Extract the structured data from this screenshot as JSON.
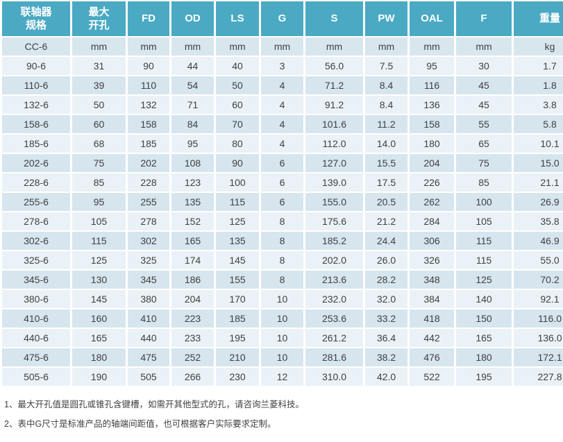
{
  "colors": {
    "header_bg": "#4aa9c3",
    "header_text": "#ffffff",
    "row_light": "#eaf2f7",
    "row_dark": "#d6e5ee",
    "units_row_bg": "#d8e6ee",
    "cell_text": "#3f3f3f"
  },
  "chart_data": {
    "type": "table",
    "title": "",
    "columns": [
      "联轴器\n规格",
      "最大\n开孔",
      "FD",
      "OD",
      "LS",
      "G",
      "S",
      "PW",
      "OAL",
      "F",
      "重量"
    ],
    "units_row": [
      "CC-6",
      "mm",
      "mm",
      "mm",
      "mm",
      "mm",
      "mm",
      "mm",
      "mm",
      "mm",
      "kg"
    ],
    "rows": [
      [
        "90-6",
        "31",
        "90",
        "44",
        "40",
        "3",
        "56.0",
        "7.5",
        "95",
        "30",
        "1.7"
      ],
      [
        "110-6",
        "39",
        "110",
        "54",
        "50",
        "4",
        "71.2",
        "8.4",
        "116",
        "45",
        "1.8"
      ],
      [
        "132-6",
        "50",
        "132",
        "71",
        "60",
        "4",
        "91.2",
        "8.4",
        "136",
        "45",
        "3.8"
      ],
      [
        "158-6",
        "60",
        "158",
        "84",
        "70",
        "4",
        "101.6",
        "11.2",
        "158",
        "55",
        "5.8"
      ],
      [
        "185-6",
        "68",
        "185",
        "95",
        "80",
        "4",
        "112.0",
        "14.0",
        "180",
        "65",
        "10.1"
      ],
      [
        "202-6",
        "75",
        "202",
        "108",
        "90",
        "6",
        "127.0",
        "15.5",
        "204",
        "75",
        "15.0"
      ],
      [
        "228-6",
        "85",
        "228",
        "123",
        "100",
        "6",
        "139.0",
        "17.5",
        "226",
        "85",
        "21.1"
      ],
      [
        "255-6",
        "95",
        "255",
        "135",
        "115",
        "6",
        "155.0",
        "20.5",
        "262",
        "100",
        "26.9"
      ],
      [
        "278-6",
        "105",
        "278",
        "152",
        "125",
        "8",
        "175.6",
        "21.2",
        "284",
        "105",
        "35.8"
      ],
      [
        "302-6",
        "115",
        "302",
        "165",
        "135",
        "8",
        "185.2",
        "24.4",
        "306",
        "115",
        "46.9"
      ],
      [
        "325-6",
        "125",
        "325",
        "174",
        "145",
        "8",
        "202.0",
        "26.0",
        "326",
        "115",
        "55.0"
      ],
      [
        "345-6",
        "130",
        "345",
        "186",
        "155",
        "8",
        "213.6",
        "28.2",
        "348",
        "125",
        "70.2"
      ],
      [
        "380-6",
        "145",
        "380",
        "204",
        "170",
        "10",
        "232.0",
        "32.0",
        "384",
        "140",
        "92.1"
      ],
      [
        "410-6",
        "160",
        "410",
        "223",
        "185",
        "10",
        "253.6",
        "33.2",
        "418",
        "150",
        "116.0"
      ],
      [
        "440-6",
        "165",
        "440",
        "233",
        "195",
        "10",
        "261.2",
        "36.4",
        "442",
        "165",
        "136.0"
      ],
      [
        "475-6",
        "180",
        "475",
        "252",
        "210",
        "10",
        "281.6",
        "38.2",
        "476",
        "180",
        "172.1"
      ],
      [
        "505-6",
        "190",
        "505",
        "266",
        "230",
        "12",
        "310.0",
        "42.0",
        "522",
        "195",
        "227.8"
      ]
    ]
  },
  "notes": [
    "1、最大开孔值是圆孔或锥孔含键槽，如需开其他型式的孔，请咨询兰菱科技。",
    "2、表中G尺寸是标准产品的轴端间距值，也可根据客户实际要求定制。"
  ]
}
